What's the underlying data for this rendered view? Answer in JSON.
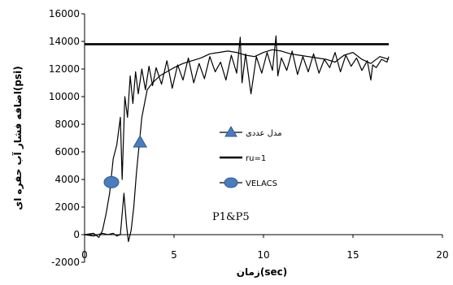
{
  "chart_data": {
    "type": "line",
    "xlabel": "زمان(sec)",
    "ylabel": "اضافه فشار آب حفره ای(psi)",
    "xlim": [
      0,
      20
    ],
    "ylim": [
      -2000,
      16000
    ],
    "xticks": [
      "0",
      "5",
      "10",
      "15",
      "20"
    ],
    "yticks": [
      "-2000",
      "0",
      "2000",
      "4000",
      "6000",
      "8000",
      "10000",
      "12000",
      "14000",
      "16000"
    ],
    "annotation": "P1&P5",
    "grid": false,
    "legend_position": "center-right",
    "series": [
      {
        "name": "مدل عددی",
        "color": "#000000",
        "marker": "triangle",
        "marker_color": "#4a7dbe",
        "marker_points": [
          [
            3.1,
            6700
          ]
        ],
        "x": [
          0,
          0.5,
          1.0,
          1.3,
          1.6,
          1.8,
          2.0,
          2.2,
          2.35,
          2.45,
          2.6,
          2.75,
          2.9,
          3.05,
          3.2,
          3.35,
          3.5,
          3.8,
          4.2,
          4.6,
          5.0,
          5.5,
          6.0,
          6.5,
          7.0,
          7.5,
          8.0,
          8.5,
          9.0,
          9.5,
          10.0,
          10.5,
          11.0,
          11.5,
          12.0,
          12.5,
          13.0,
          13.5,
          14.0,
          14.5,
          15.0,
          15.5,
          16.0,
          16.5,
          17.0
        ],
        "y": [
          0,
          -100,
          100,
          0,
          100,
          -100,
          0,
          3000,
          600,
          -500,
          300,
          2000,
          4500,
          6500,
          8500,
          9500,
          10500,
          11000,
          11500,
          11800,
          12100,
          12400,
          12600,
          12800,
          13100,
          13200,
          13300,
          13200,
          13000,
          12900,
          13200,
          13400,
          13300,
          13100,
          13000,
          12900,
          12800,
          12700,
          12500,
          13000,
          13200,
          12700,
          12400,
          12900,
          12700
        ]
      },
      {
        "name": "ru=1",
        "color": "#000000",
        "x": [
          0,
          17
        ],
        "y": [
          13800,
          13800
        ]
      },
      {
        "name": "VELACS",
        "color": "#000000",
        "marker": "circle",
        "marker_color": "#4a7dbe",
        "marker_points": [
          [
            1.5,
            3800
          ]
        ],
        "x": [
          0,
          0.5,
          0.8,
          1.0,
          1.2,
          1.4,
          1.6,
          1.8,
          2.0,
          2.1,
          2.25,
          2.4,
          2.55,
          2.7,
          2.85,
          3.0,
          3.2,
          3.4,
          3.6,
          3.8,
          4.0,
          4.3,
          4.6,
          4.9,
          5.2,
          5.5,
          5.8,
          6.1,
          6.4,
          6.7,
          7.0,
          7.3,
          7.6,
          7.9,
          8.2,
          8.5,
          8.7,
          8.8,
          9.0,
          9.3,
          9.6,
          9.9,
          10.2,
          10.5,
          10.7,
          10.8,
          11.0,
          11.3,
          11.6,
          11.9,
          12.2,
          12.5,
          12.8,
          13.1,
          13.4,
          13.7,
          14.0,
          14.3,
          14.6,
          14.9,
          15.2,
          15.5,
          15.8,
          16.0,
          16.1,
          16.3,
          16.6,
          16.9,
          17.0
        ],
        "y": [
          0,
          100,
          -200,
          300,
          1500,
          3000,
          5500,
          6500,
          8500,
          4000,
          10000,
          8500,
          11500,
          9500,
          11800,
          10200,
          12000,
          10500,
          12200,
          10800,
          12100,
          10900,
          12600,
          10600,
          12300,
          11200,
          12800,
          11000,
          12400,
          11300,
          12900,
          11800,
          12500,
          11200,
          13000,
          11700,
          14300,
          11000,
          13100,
          10200,
          12900,
          11700,
          13200,
          11900,
          14400,
          11500,
          12800,
          11900,
          13300,
          11600,
          12900,
          11800,
          13100,
          11700,
          12700,
          12100,
          13200,
          11800,
          13000,
          12200,
          12800,
          11900,
          12600,
          11200,
          12300,
          12100,
          12700,
          12500,
          12900
        ]
      }
    ]
  }
}
